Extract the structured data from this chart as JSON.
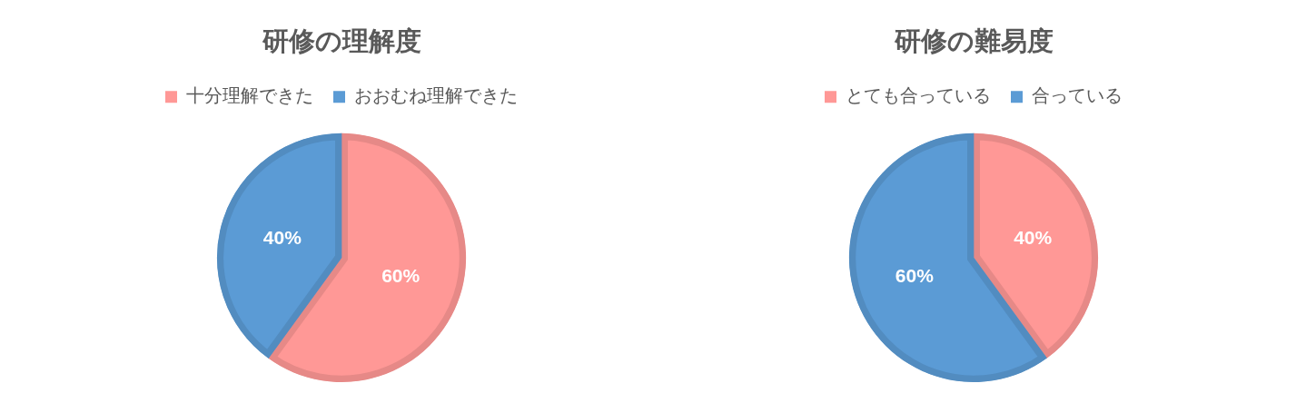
{
  "chart_data": [
    {
      "type": "pie",
      "title": "研修の理解度",
      "categories": [
        "十分理解できた",
        "おおむね理解できた"
      ],
      "values": [
        60,
        40
      ],
      "colors": [
        "#ff9896",
        "#5b9bd5"
      ],
      "value_labels": [
        "60%",
        "40%"
      ],
      "legend": "top"
    },
    {
      "type": "pie",
      "title": "研修の難易度",
      "categories": [
        "とても合っている",
        "合っている"
      ],
      "values": [
        40,
        60
      ],
      "colors": [
        "#ff9896",
        "#5b9bd5"
      ],
      "value_labels": [
        "40%",
        "60%"
      ],
      "legend": "top"
    }
  ]
}
